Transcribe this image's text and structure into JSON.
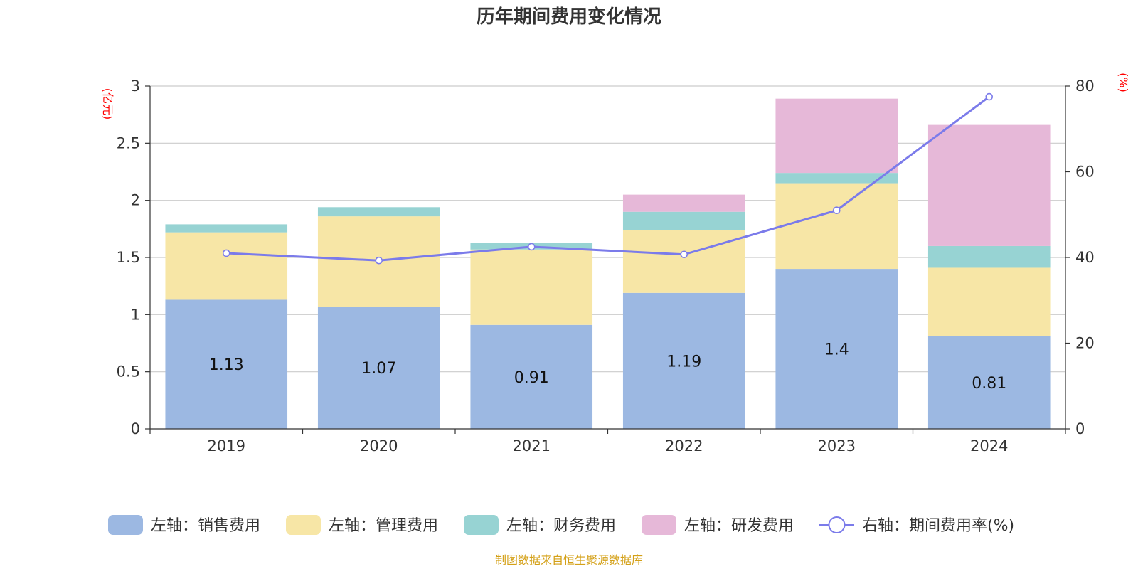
{
  "chart_data": {
    "type": "bar",
    "title": "历年期间费用变化情况",
    "categories": [
      "2019",
      "2020",
      "2021",
      "2022",
      "2023",
      "2024"
    ],
    "left_axis": {
      "unit": "(亿元)",
      "ylim": [
        0,
        3
      ],
      "ticks": [
        "0",
        "0.5",
        "1",
        "1.5",
        "2",
        "2.5",
        "3"
      ]
    },
    "right_axis": {
      "unit": "(%)",
      "ylim": [
        0,
        80
      ],
      "ticks": [
        "0",
        "20",
        "40",
        "60",
        "80"
      ]
    },
    "series": [
      {
        "name": "左轴：销售费用",
        "kind": "bar",
        "color": "#9cb8e2",
        "values": [
          1.13,
          1.07,
          0.91,
          1.19,
          1.4,
          0.81
        ],
        "labels": [
          "1.13",
          "1.07",
          "0.91",
          "1.19",
          "1.4",
          "0.81"
        ]
      },
      {
        "name": "左轴：管理费用",
        "kind": "bar",
        "color": "#f7e6a6",
        "values": [
          0.59,
          0.79,
          0.66,
          0.55,
          0.75,
          0.6
        ]
      },
      {
        "name": "左轴：财务费用",
        "kind": "bar",
        "color": "#97d3d3",
        "values": [
          0.07,
          0.08,
          0.06,
          0.16,
          0.09,
          0.19
        ]
      },
      {
        "name": "左轴：研发费用",
        "kind": "bar",
        "color": "#e6b8d8",
        "values": [
          0.0,
          0.0,
          0.0,
          0.15,
          0.65,
          1.06
        ]
      },
      {
        "name": "右轴：期间费用率(%)",
        "kind": "line",
        "color": "#7b7bea",
        "values": [
          41.0,
          39.3,
          42.5,
          40.7,
          51.0,
          77.5
        ]
      }
    ],
    "grid": true,
    "legend_position": "bottom"
  },
  "footer": {
    "source": "制图数据来自恒生聚源数据库"
  }
}
